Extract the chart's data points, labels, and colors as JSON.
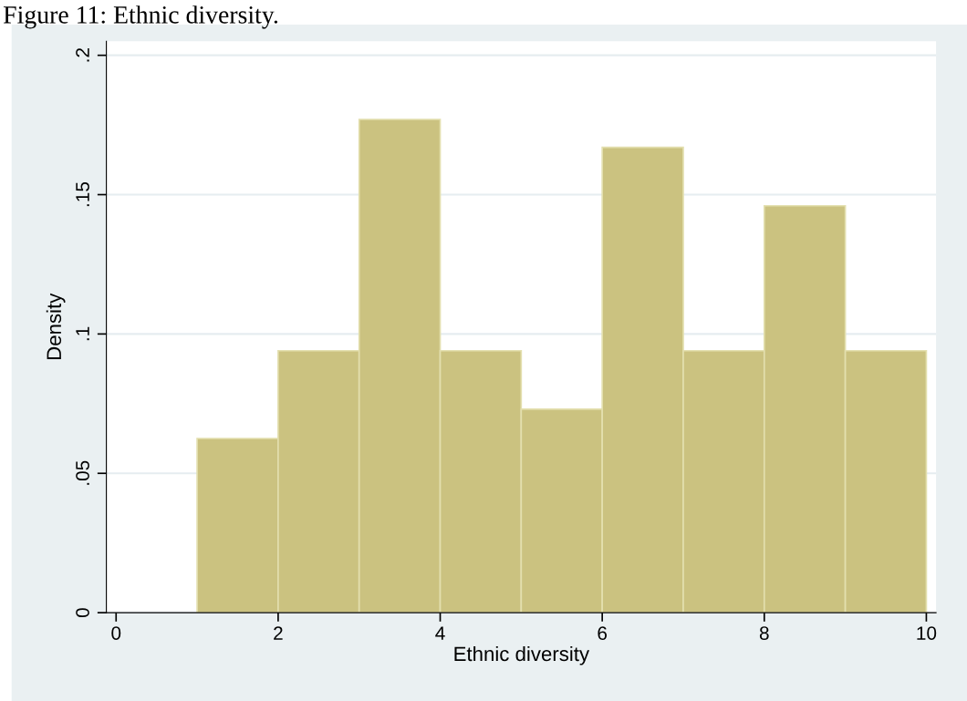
{
  "chart_data": {
    "type": "histogram",
    "title": "Figure 11: Ethnic diversity.",
    "xlabel": "Ethnic diversity",
    "ylabel": "Density",
    "bins": [
      1,
      2,
      3,
      4,
      5,
      6,
      7,
      8,
      9,
      10
    ],
    "values": [
      0.0625,
      0.094,
      0.177,
      0.094,
      0.073,
      0.167,
      0.094,
      0.146,
      0.094
    ],
    "color": "#cbc280",
    "xlim": [
      -0.12,
      10.12
    ],
    "ylim": [
      0,
      0.205
    ],
    "xticks": [
      0,
      2,
      4,
      6,
      8,
      10
    ],
    "yticks": [
      {
        "value": 0,
        "label": "0"
      },
      {
        "value": 0.05,
        "label": ".05"
      },
      {
        "value": 0.1,
        "label": ".1"
      },
      {
        "value": 0.15,
        "label": ".15"
      },
      {
        "value": 0.2,
        "label": ".2"
      }
    ],
    "grid": "y",
    "legend": false
  }
}
